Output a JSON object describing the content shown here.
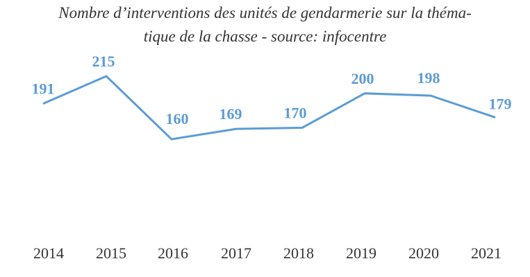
{
  "chart_data": {
    "type": "line",
    "title_line1": "Nombre d’interventions des unités de gendarmerie sur la théma-",
    "title_line2": "tique de la chasse - source: infocentre",
    "categories": [
      "2014",
      "2015",
      "2016",
      "2017",
      "2018",
      "2019",
      "2020",
      "2021"
    ],
    "values": [
      191,
      215,
      160,
      169,
      170,
      200,
      198,
      179
    ],
    "series_color": "#5b9bd5",
    "data_labels": true,
    "grid": false,
    "legend": "none"
  }
}
